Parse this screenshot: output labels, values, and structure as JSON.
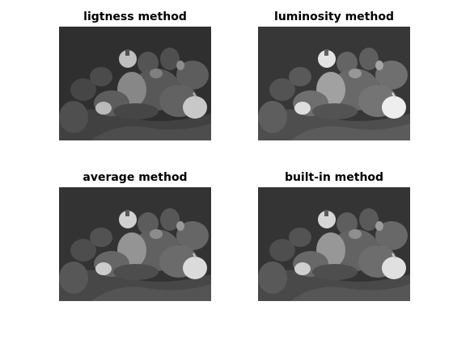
{
  "figure": {
    "panels": [
      {
        "title": "ligtness method",
        "image_subject": "grayscale-peppers-photo",
        "brightness": 0.42
      },
      {
        "title": "luminosity method",
        "image_subject": "grayscale-peppers-photo",
        "brightness": 0.5
      },
      {
        "title": "average method",
        "image_subject": "grayscale-peppers-photo",
        "brightness": 0.46
      },
      {
        "title": "built-in method",
        "image_subject": "grayscale-peppers-photo",
        "brightness": 0.47
      }
    ]
  }
}
